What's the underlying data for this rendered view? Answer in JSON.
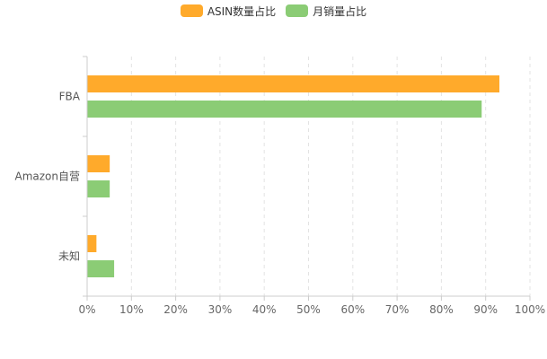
{
  "chart_data": {
    "type": "bar",
    "orientation": "horizontal",
    "categories": [
      "FBA",
      "Amazon自营",
      "未知"
    ],
    "series": [
      {
        "name": "ASIN数量占比",
        "color": "#FFAA2B",
        "values": [
          93,
          5,
          2
        ]
      },
      {
        "name": "月销量占比",
        "color": "#8BCC75",
        "values": [
          89,
          5,
          6
        ]
      }
    ],
    "xlim": [
      0,
      100
    ],
    "x_ticks": [
      "0%",
      "10%",
      "20%",
      "30%",
      "40%",
      "50%",
      "60%",
      "70%",
      "80%",
      "90%",
      "100%"
    ],
    "grid": true,
    "legend_position": "top-center"
  }
}
